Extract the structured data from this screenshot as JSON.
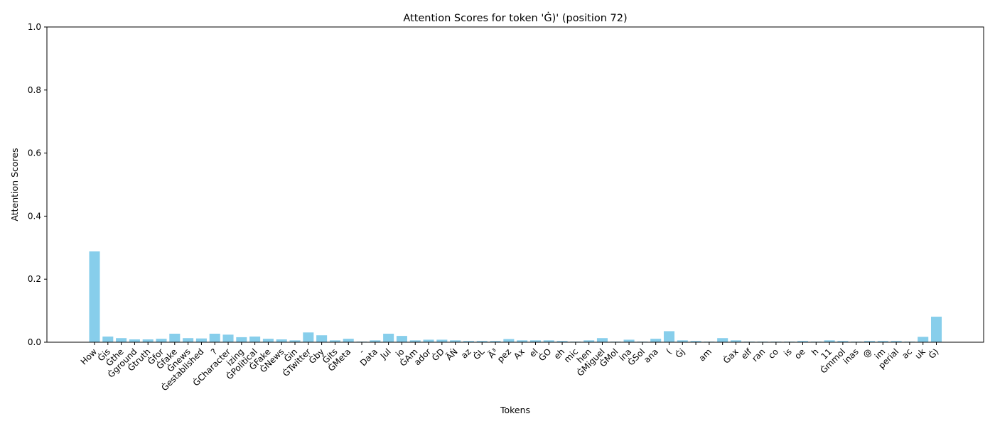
{
  "chart_data": {
    "type": "bar",
    "title": "Attention Scores for token 'Ġ)' (position 72)",
    "xlabel": "Tokens",
    "ylabel": "Attention Scores",
    "ylim": [
      0,
      1
    ],
    "yticks": [
      "0.0",
      "0.2",
      "0.4",
      "0.6",
      "0.8",
      "1.0"
    ],
    "grid": false,
    "bar_color": "#87CEEB",
    "categories": [
      "How",
      "Ġis",
      "Ġthe",
      "Ġground",
      "Ġtruth",
      "Ġfor",
      "Ġfake",
      "Ġnews",
      "Ġestablished",
      "?",
      "ĠCharacter",
      "izing",
      "ĠPolitical",
      "ĠFake",
      "ĠNews",
      "Ġin",
      "ĠTwitter",
      "Ġby",
      "Ġits",
      "ĠMeta",
      "-",
      "Data",
      "Jul",
      "io",
      "ĠAm",
      "ador",
      "ĠD",
      "ÃŃ",
      "az",
      "ĠL",
      "Ã³",
      "pez",
      "Ax",
      "el",
      "ĠO",
      "eh",
      "mic",
      "hen",
      "ĠMiguel",
      "ĠMol",
      "ina",
      "ĠSol",
      "ana",
      "(",
      "Ġj",
      "",
      "am",
      "",
      "Ġax",
      "elf",
      "ran",
      "co",
      "is",
      "oe",
      "h",
      "11",
      "Ġmmol",
      "inas",
      "@",
      "im",
      "perial",
      "ac",
      "uk",
      "Ġ)"
    ],
    "values": [
      0.288,
      0.018,
      0.013,
      0.009,
      0.009,
      0.011,
      0.027,
      0.013,
      0.012,
      0.027,
      0.024,
      0.016,
      0.018,
      0.011,
      0.009,
      0.006,
      0.031,
      0.022,
      0.006,
      0.011,
      0.002,
      0.006,
      0.027,
      0.02,
      0.006,
      0.008,
      0.008,
      0.006,
      0.004,
      0.004,
      0.004,
      0.01,
      0.006,
      0.006,
      0.006,
      0.004,
      0.002,
      0.006,
      0.013,
      0.002,
      0.008,
      0.002,
      0.011,
      0.035,
      0.006,
      0.004,
      0.002,
      0.013,
      0.006,
      0.002,
      0.002,
      0.002,
      0.002,
      0.004,
      0.002,
      0.006,
      0.004,
      0.002,
      0.004,
      0.004,
      0.004,
      0.002,
      0.017,
      0.081
    ]
  }
}
